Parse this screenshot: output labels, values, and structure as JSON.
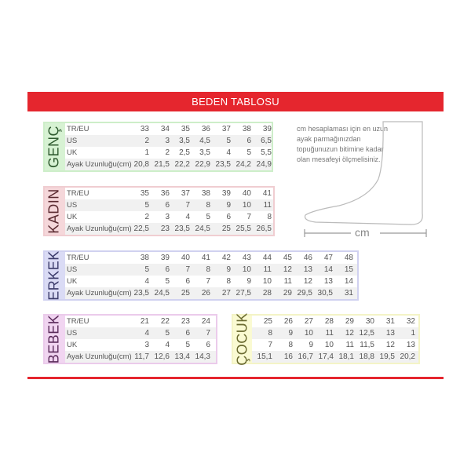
{
  "title": "BEDEN TABLOSU",
  "row_labels": [
    "TR/EU",
    "US",
    "UK",
    "Ayak Uzunluğu(cm)"
  ],
  "tables": [
    {
      "name": "GENÇ",
      "bg": "#d7f2d3",
      "border": "#cdeec9",
      "text": "#2f5a2f",
      "rows": [
        [
          "33",
          "34",
          "35",
          "36",
          "37",
          "38",
          "39"
        ],
        [
          "2",
          "3",
          "3,5",
          "4,5",
          "5",
          "6",
          "6,5"
        ],
        [
          "1",
          "2",
          "2,5",
          "3,5",
          "4",
          "5",
          "5,5"
        ],
        [
          "20,8",
          "21,5",
          "22,2",
          "22,9",
          "23,5",
          "24,2",
          "24,9"
        ]
      ]
    },
    {
      "name": "KADIN",
      "bg": "#f5d7da",
      "border": "#f0cdd1",
      "text": "#5a2a30",
      "rows": [
        [
          "35",
          "36",
          "37",
          "38",
          "39",
          "40",
          "41"
        ],
        [
          "5",
          "6",
          "7",
          "8",
          "9",
          "10",
          "11"
        ],
        [
          "2",
          "3",
          "4",
          "5",
          "6",
          "7",
          "8"
        ],
        [
          "22,5",
          "23",
          "23,5",
          "24,5",
          "25",
          "25,5",
          "26,5"
        ]
      ]
    },
    {
      "name": "ERKEK",
      "bg": "#dadbf5",
      "border": "#d0d1f0",
      "text": "#3a3a6a",
      "rows": [
        [
          "38",
          "39",
          "40",
          "41",
          "42",
          "43",
          "44",
          "45",
          "46",
          "47",
          "48"
        ],
        [
          "5",
          "6",
          "7",
          "8",
          "9",
          "10",
          "11",
          "12",
          "13",
          "14",
          "15"
        ],
        [
          "4",
          "5",
          "6",
          "7",
          "8",
          "9",
          "10",
          "11",
          "12",
          "13",
          "14"
        ],
        [
          "23,5",
          "24,5",
          "25",
          "26",
          "27",
          "27,5",
          "28",
          "29",
          "29,5",
          "30,5",
          "31"
        ]
      ]
    },
    {
      "name": "BEBEK",
      "bg": "#f1d5f1",
      "border": "#ebcbeb",
      "text": "#5a2a5a",
      "rows": [
        [
          "21",
          "22",
          "23",
          "24"
        ],
        [
          "4",
          "5",
          "6",
          "7"
        ],
        [
          "3",
          "4",
          "5",
          "6"
        ],
        [
          "11,7",
          "12,6",
          "13,4",
          "14,3"
        ]
      ]
    },
    {
      "name": "ÇOCUK",
      "bg": "#fafad2",
      "border": "#f4f4c6",
      "text": "#6a6a30",
      "nolabels": true,
      "rows": [
        [
          "25",
          "26",
          "27",
          "28",
          "29",
          "30",
          "31",
          "32"
        ],
        [
          "8",
          "9",
          "10",
          "11",
          "12",
          "12,5",
          "13",
          "1"
        ],
        [
          "7",
          "8",
          "9",
          "10",
          "11",
          "11,5",
          "12",
          "13"
        ],
        [
          "15,1",
          "16",
          "16,7",
          "17,4",
          "18,1",
          "18,8",
          "19,5",
          "20,2"
        ]
      ]
    }
  ],
  "note": "cm hesaplaması için en uzun ayak parmağınızdan topuğunuzun bitimine kadar olan mesafeyi ölçmelisiniz.",
  "measure_unit": "cm",
  "colors": {
    "accent": "#e5262e"
  }
}
